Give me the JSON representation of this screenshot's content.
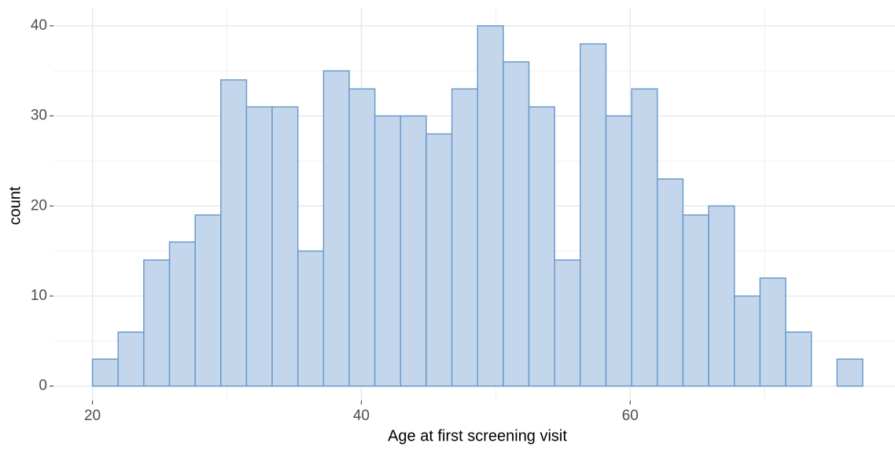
{
  "chart_data": {
    "type": "histogram",
    "xlabel": "Age at first screening visit",
    "ylabel": "count",
    "bins": [
      20,
      21.91,
      23.82,
      25.73,
      27.64,
      29.55,
      31.46,
      33.37,
      35.28,
      37.19,
      39.1,
      41.01,
      42.92,
      44.83,
      46.74,
      48.65,
      50.56,
      52.47,
      54.38,
      56.29,
      58.2,
      60.11,
      62.02,
      63.93,
      65.84,
      67.75,
      69.66,
      71.57,
      73.48,
      75.39,
      77.3
    ],
    "values": [
      3,
      6,
      14,
      16,
      19,
      34,
      31,
      31,
      15,
      35,
      33,
      30,
      30,
      28,
      33,
      40,
      36,
      31,
      14,
      38,
      30,
      33,
      23,
      19,
      20,
      10,
      12,
      6,
      0,
      3
    ],
    "color": "#c3d6ec",
    "edgecolor": "#6b9bcb",
    "xlim": [
      17.1,
      79.7
    ],
    "ylim": [
      -1.6,
      42
    ],
    "xticks": [
      20,
      40,
      60
    ],
    "yticks": [
      0,
      10,
      20,
      30,
      40
    ],
    "xminor": [
      30,
      50,
      70
    ],
    "yminor": [
      5,
      15,
      25,
      35
    ],
    "grid": true
  }
}
